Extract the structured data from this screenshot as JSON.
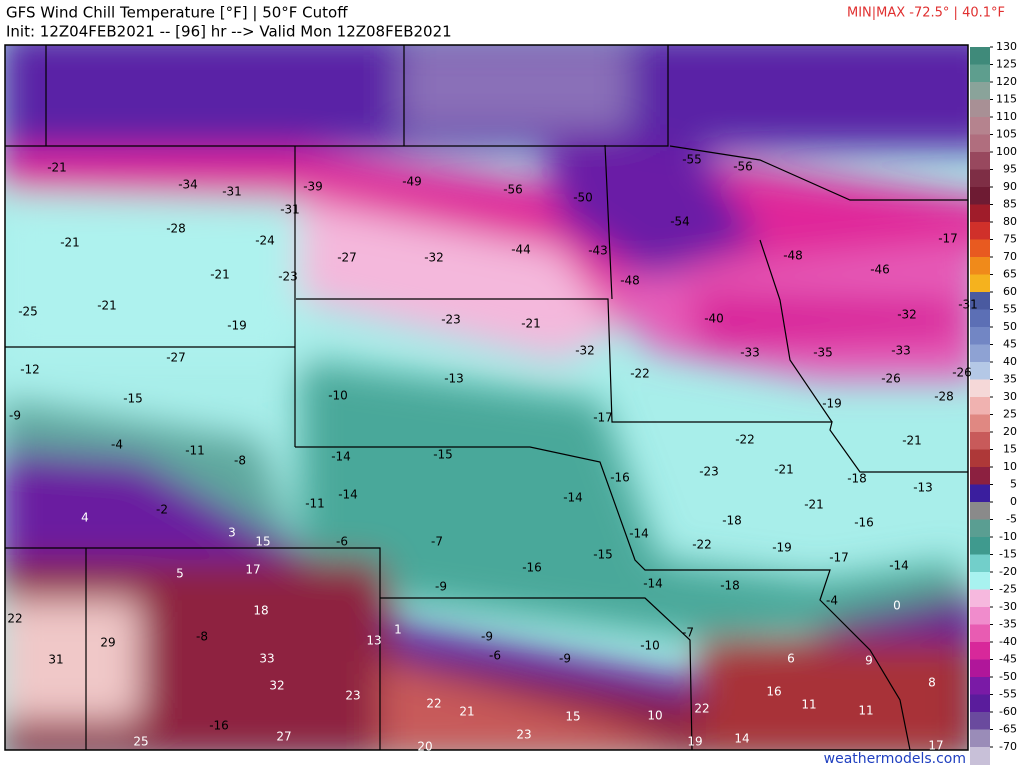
{
  "header": {
    "title": "GFS Wind Chill Temperature [°F] | 50°F Cutoff",
    "subtitle": "Init: 12Z04FEB2021 -- [96] hr --> Valid Mon 12Z08FEB2021",
    "minmax": "MIN|MAX -72.5° | 40.1°F"
  },
  "footer": {
    "credit": "weathermodels.com"
  },
  "colorbar": {
    "ticks": [
      130,
      125,
      120,
      115,
      110,
      105,
      100,
      95,
      90,
      85,
      80,
      75,
      70,
      65,
      60,
      55,
      50,
      45,
      40,
      35,
      30,
      25,
      20,
      15,
      10,
      5,
      0,
      -5,
      -10,
      -15,
      -20,
      -25,
      -30,
      -35,
      -40,
      -45,
      -50,
      -55,
      -60,
      -65,
      -70
    ],
    "colors": [
      "#3f8a7a",
      "#5e9e8e",
      "#8aa39a",
      "#a89095",
      "#b5838e",
      "#b06e7e",
      "#98485e",
      "#7e2e45",
      "#6e1b33",
      "#a01c2a",
      "#d0302a",
      "#e85a20",
      "#f08a1a",
      "#f5b21e",
      "#4a5aa0",
      "#5c6fb5",
      "#7286c4",
      "#8ea2d3",
      "#b4c8e6",
      "#f5d8d8",
      "#f0b2b0",
      "#e08882",
      "#c85a5a",
      "#ae3838",
      "#8c2040",
      "#3a1e9e",
      "#8a8a8a",
      "#5a9e92",
      "#3f9a8e",
      "#72cfca",
      "#a8f2f0",
      "#f6b8de",
      "#f08ccc",
      "#e85cb2",
      "#d8289a",
      "#b0169a",
      "#7a1aa6",
      "#5a1c9c",
      "#6a4a9e",
      "#9a8cb8",
      "#c8c0d8"
    ]
  },
  "map": {
    "labels": [
      -21,
      -34,
      -31,
      -39,
      -49,
      -56,
      -50,
      -55,
      -56,
      -28,
      -31,
      -54,
      -21,
      -24,
      -27,
      -32,
      -44,
      -43,
      -48,
      -17,
      -46,
      -21,
      -23,
      -48,
      -21,
      -25,
      -19,
      -23,
      -21,
      -40,
      -32,
      -31,
      -27,
      -32,
      -33,
      -35,
      -33,
      -12,
      -13,
      -22,
      -26,
      -26,
      -15,
      -10,
      -19,
      -28,
      -9,
      -17,
      -22,
      -21,
      -4,
      -11,
      -14,
      -15,
      -8,
      -23,
      -21,
      -18,
      -14,
      -11,
      -14,
      -16,
      -21,
      -13,
      4,
      -2,
      -18,
      -16,
      3,
      15,
      -6,
      -7,
      -14,
      -22,
      -19,
      -17,
      5,
      17,
      -15,
      -16,
      -14,
      -9,
      -14,
      -18,
      -4,
      0,
      18,
      22,
      1,
      13,
      -9,
      -8,
      29,
      -7,
      -10,
      31,
      33,
      -6,
      -9,
      6,
      9,
      32,
      23,
      8,
      16,
      22,
      21,
      11,
      11,
      22,
      15,
      10,
      -16,
      27,
      25,
      23,
      14,
      19,
      20,
      17
    ]
  }
}
